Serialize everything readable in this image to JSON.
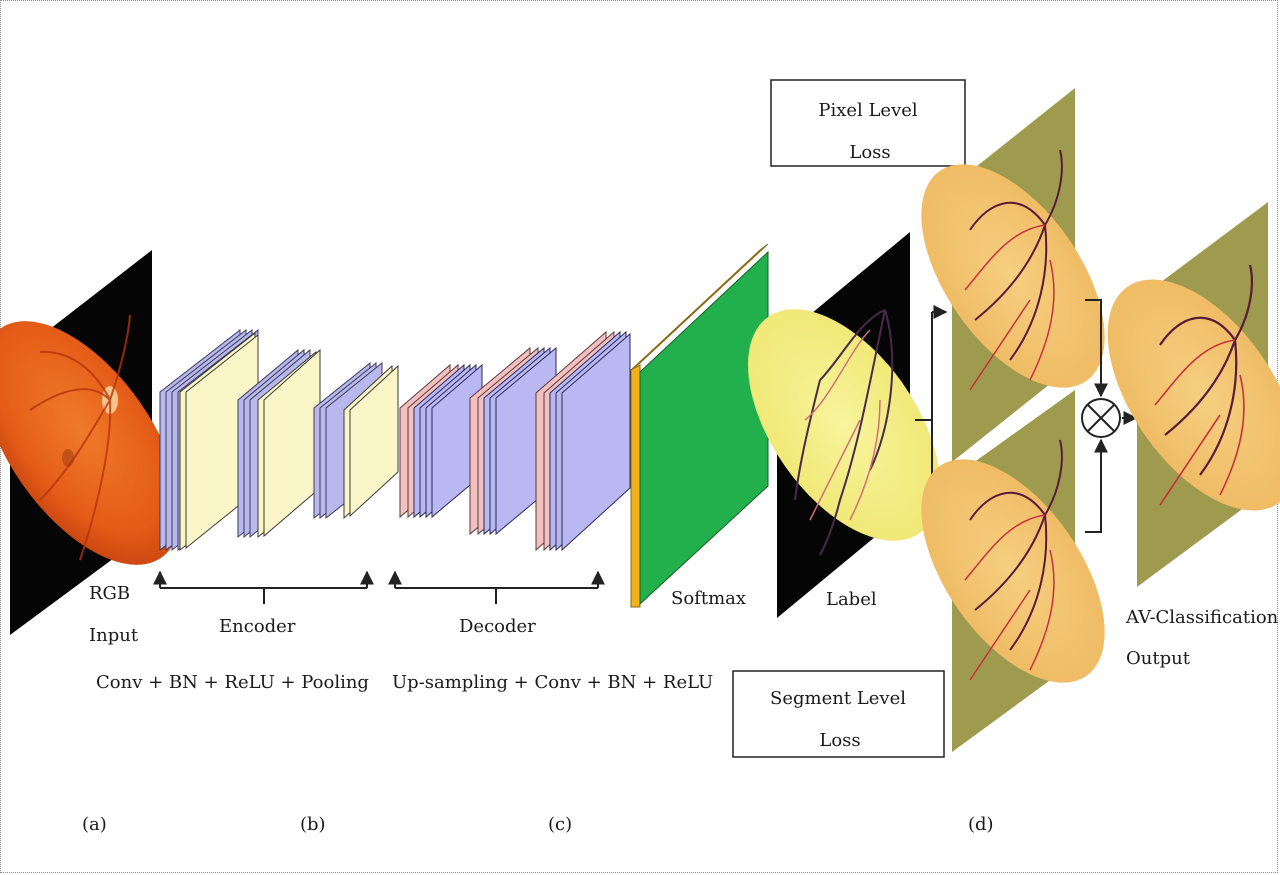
{
  "input": {
    "line1": "RGB",
    "line2": "Input"
  },
  "encoder": {
    "label": "Encoder",
    "ops": "Conv + BN + ReLU + Pooling"
  },
  "decoder": {
    "label": "Decoder",
    "ops": "Up-sampling + Conv + BN + ReLU"
  },
  "softmax": {
    "label": "Softmax"
  },
  "label_map": {
    "label": "Label"
  },
  "pixel_loss": {
    "line1": "Pixel Level",
    "line2": "Loss"
  },
  "segment_loss": {
    "line1": "Segment Level",
    "line2": "Loss"
  },
  "output": {
    "line1": "AV-Classification",
    "line2": "Output"
  },
  "panels": [
    "(a)",
    "(b)",
    "(c)",
    "(d)"
  ],
  "colors": {
    "fundus": "#e8621c",
    "encoder_thin": "#b9b8ec",
    "encoder_slab": "#fbf6c8",
    "decoder_thin": "#f3c0c0",
    "decoder_slab": "#b9b8f2",
    "softmax_face": "#22b04c",
    "softmax_edge": "#f2b21c",
    "label_disc": "#f5ef82",
    "map_bg": "#9e9a4e",
    "map_disc": "#f2c46e",
    "vessel_artery": "#c8303c",
    "vessel_vein": "#5a1a3a"
  }
}
